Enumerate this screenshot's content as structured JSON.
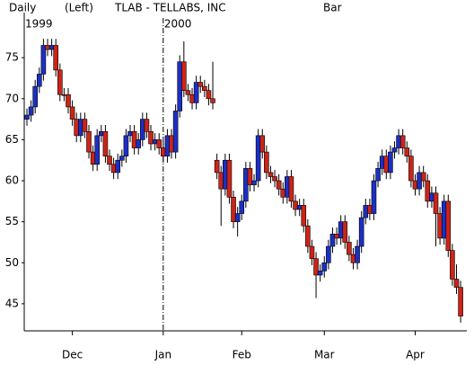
{
  "chart_data": {
    "type": "candlestick",
    "title": "TLAB - TELLABS, INC",
    "periodicity": "Daily",
    "scale_side": "(Left)",
    "style": "Bar",
    "year_labels": [
      {
        "value": -0.65,
        "label": "1999"
      },
      {
        "value": 33,
        "label": "2000"
      }
    ],
    "up_color": "#1c2fc4",
    "down_color": "#cc2418",
    "open": [
      67.5,
      68,
      69,
      71.5,
      73,
      76.5,
      76,
      76.5,
      73.5,
      70.5,
      70.5,
      69,
      67.5,
      65.5,
      67.5,
      66,
      63.5,
      62,
      65.5,
      66,
      63,
      62,
      61,
      62.5,
      63,
      65.5,
      66,
      64,
      65,
      67.5,
      66,
      64.5,
      65,
      64,
      63,
      65.5,
      63.5,
      68.5,
      74.5,
      71,
      70.5,
      69.5,
      72,
      71.5,
      71,
      70,
      62.5,
      61,
      59,
      62.5,
      58,
      55,
      56,
      57.5,
      61.5,
      59.5,
      60,
      65.5,
      63.5,
      61,
      60.5,
      60,
      59,
      58,
      60.5,
      57.5,
      56.5,
      57,
      54.5,
      52,
      50.5,
      48.5,
      49,
      50,
      52,
      53.5,
      53,
      55,
      52.5,
      51,
      50,
      52,
      55.5,
      57,
      56,
      60,
      61.5,
      63,
      61,
      63.5,
      64,
      65.5,
      64,
      63,
      60,
      59,
      61,
      60,
      57.5,
      58.5,
      56,
      53,
      57.5,
      51.5,
      48,
      47
    ],
    "high": [
      68.8,
      69.8,
      72.3,
      73.8,
      77.3,
      77.3,
      77.3,
      77.3,
      74.3,
      71.3,
      71.3,
      69.8,
      68.3,
      68.3,
      68.3,
      66.8,
      64.3,
      66.3,
      66.8,
      66.8,
      63.8,
      62.8,
      63.3,
      63.8,
      66.3,
      66.8,
      66.8,
      65.8,
      68.3,
      68.3,
      66.8,
      65.8,
      65.8,
      64.8,
      66.3,
      66.3,
      69.3,
      75.3,
      77,
      71.8,
      71.3,
      72.8,
      72.8,
      72.3,
      71.8,
      74.5,
      63.3,
      61.8,
      63.3,
      63.3,
      58.8,
      56.8,
      58.3,
      62.3,
      62.3,
      60.8,
      66.3,
      66.3,
      64.3,
      61.8,
      61.3,
      60.8,
      59.8,
      61.3,
      61.3,
      58.3,
      57.8,
      57.8,
      55.3,
      52.8,
      51.3,
      49.8,
      50.8,
      52.8,
      54.3,
      54.3,
      55.8,
      55.8,
      53.3,
      51.8,
      52.8,
      56.3,
      57.8,
      57.8,
      60.8,
      62.3,
      63.8,
      63.8,
      64.3,
      64.8,
      66.3,
      66.3,
      64.8,
      63.8,
      60.8,
      61.8,
      61.8,
      60.8,
      59.3,
      59.3,
      56.8,
      58.3,
      58.3,
      52.3,
      49.8,
      47.8
    ],
    "low": [
      66.7,
      67.2,
      68.2,
      70.7,
      72.2,
      75.2,
      75.2,
      72.7,
      69.7,
      69.7,
      68.2,
      66.7,
      64.7,
      64.7,
      65.2,
      62.7,
      61.2,
      61.2,
      64.7,
      62.2,
      61.2,
      60.2,
      60.2,
      61.7,
      62.2,
      64.7,
      63.2,
      63.2,
      64.2,
      65.2,
      63.7,
      63.7,
      63.2,
      62.2,
      62.2,
      62.7,
      62.7,
      67.7,
      70.2,
      69.7,
      68.7,
      68.7,
      70.7,
      70.2,
      69.2,
      68.7,
      60.2,
      54.5,
      58.2,
      57.2,
      54.2,
      53.2,
      55.2,
      56.7,
      58.7,
      58.7,
      59.2,
      62.7,
      60.2,
      59.7,
      59.2,
      58.2,
      57.2,
      57.2,
      56.7,
      55.7,
      55.7,
      53.7,
      51.2,
      49.7,
      45.7,
      47.7,
      48.2,
      49.2,
      51.2,
      52.2,
      52.2,
      51.7,
      50.2,
      49.2,
      49.2,
      51.2,
      54.7,
      55.2,
      55.2,
      59.2,
      60.7,
      60.2,
      60.2,
      62.7,
      63.2,
      63.2,
      62.2,
      59.2,
      58.2,
      58.2,
      59.2,
      56.7,
      56.7,
      52,
      52.2,
      52.2,
      50.7,
      47.2,
      46.2,
      42.7
    ],
    "close": [
      68,
      69,
      71.5,
      73,
      76.5,
      76,
      76.5,
      73.5,
      70.5,
      70.5,
      69,
      67.5,
      65.5,
      67.5,
      66,
      63.5,
      62,
      65.5,
      66,
      63,
      62,
      61,
      62.5,
      63,
      65.5,
      66,
      64,
      65,
      67.5,
      66,
      64.5,
      65,
      64,
      63,
      65.5,
      63.5,
      68.5,
      74.5,
      71,
      70.5,
      69.5,
      72,
      71.5,
      71,
      70,
      69.5,
      61,
      59,
      62.5,
      58,
      55,
      56,
      57.5,
      61.5,
      59.5,
      60,
      65.5,
      63.5,
      61,
      60.5,
      60,
      59,
      58,
      60.5,
      57.5,
      56.5,
      57,
      54.5,
      52,
      50.5,
      48.5,
      49,
      50,
      52,
      53.5,
      53,
      55,
      52.5,
      51,
      50,
      52,
      55.5,
      57,
      56,
      60,
      61.5,
      63,
      61,
      63.5,
      64,
      65.5,
      64,
      63,
      60,
      59,
      61,
      60,
      57.5,
      58.5,
      56,
      53,
      57.5,
      51.5,
      48,
      47,
      43.5
    ],
    "xlim": [
      -0.65,
      106.5
    ],
    "xticks": [
      {
        "value": 11,
        "label": "Dec"
      },
      {
        "value": 33,
        "label": "Jan"
      },
      {
        "value": 52,
        "label": "Feb"
      },
      {
        "value": 72,
        "label": "Mar"
      },
      {
        "value": 94,
        "label": "Apr"
      }
    ],
    "ylim": [
      41.7,
      80.5
    ],
    "yticks": [
      45,
      50,
      55,
      60,
      65,
      70,
      75
    ]
  }
}
